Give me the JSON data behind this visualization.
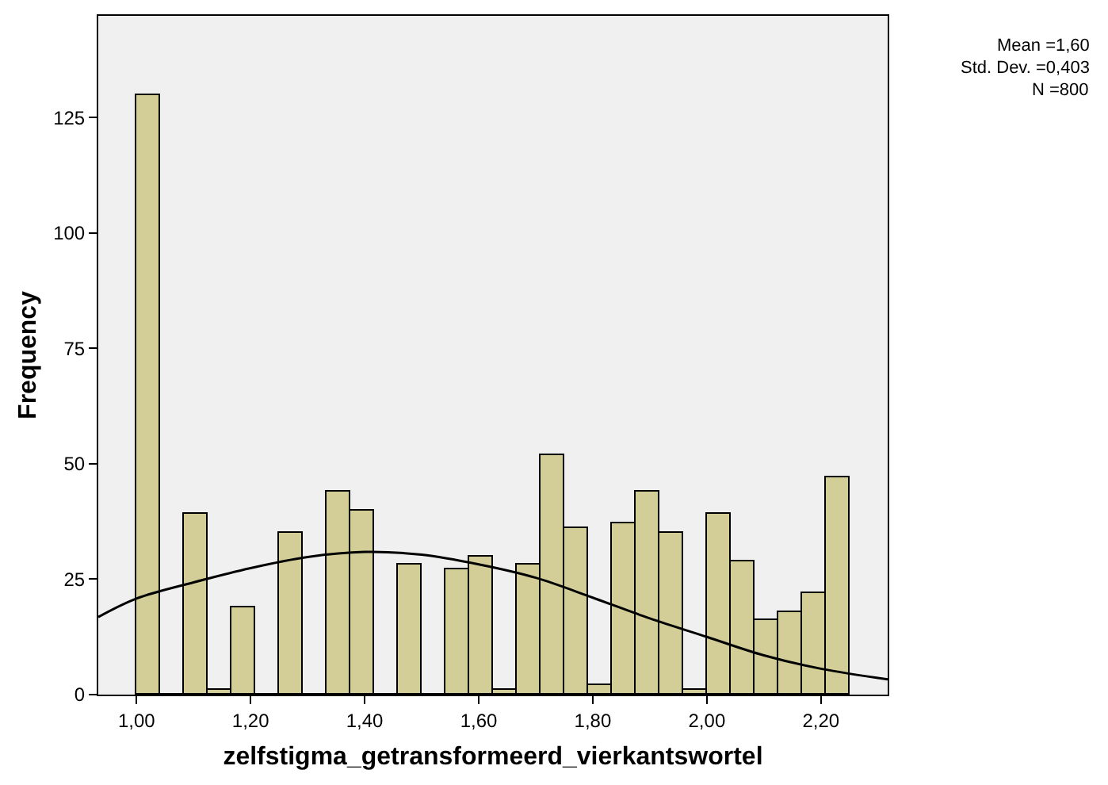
{
  "chart_data": {
    "type": "histogram",
    "xlabel": "zelfstigma_getransformeerd_vierkantswortel",
    "ylabel": "Frequency",
    "annotations": [
      "Mean =1,60",
      "Std. Dev. =0,403",
      "N =800"
    ],
    "series": [
      {
        "color": "#d3ce98",
        "bins": [
          1.0,
          1.0417,
          1.0833,
          1.125,
          1.1667,
          1.2083,
          1.25,
          1.2917,
          1.3333,
          1.375,
          1.4167,
          1.4583,
          1.5,
          1.5417,
          1.5833,
          1.625,
          1.6667,
          1.7083,
          1.75,
          1.7917,
          1.8333,
          1.875,
          1.9167,
          1.9583,
          2.0,
          2.0417,
          2.0833,
          2.125,
          2.1667,
          2.2083,
          2.25
        ],
        "values": [
          130,
          0,
          39,
          1,
          19,
          0,
          35,
          0,
          44,
          40,
          0,
          28,
          0,
          27,
          30,
          1,
          28,
          52,
          36,
          2,
          37,
          44,
          35,
          1,
          39,
          29,
          16,
          18,
          22,
          47
        ]
      },
      {
        "type": "line",
        "color": "#000000",
        "x": [
          0.933,
          1.0,
          1.1,
          1.2,
          1.3,
          1.4,
          1.5,
          1.6,
          1.7,
          1.8,
          1.9,
          2.0,
          2.1,
          2.2,
          2.317
        ],
        "values": [
          16.8,
          20.8,
          24.3,
          27.4,
          29.8,
          30.9,
          30.3,
          28.2,
          25.3,
          21,
          16.5,
          12.5,
          8.5,
          5.6,
          3.3
        ]
      }
    ],
    "xlim": [
      0.933,
      2.317
    ],
    "ylim": [
      0,
      147
    ],
    "xticks": [
      {
        "value": 1.0,
        "label": "1,00"
      },
      {
        "value": 1.2,
        "label": "1,20"
      },
      {
        "value": 1.4,
        "label": "1,40"
      },
      {
        "value": 1.6,
        "label": "1,60"
      },
      {
        "value": 1.8,
        "label": "1,80"
      },
      {
        "value": 2.0,
        "label": "2,00"
      },
      {
        "value": 2.2,
        "label": "2,20"
      }
    ],
    "yticks": [
      0,
      25,
      50,
      75,
      100,
      125
    ],
    "grid": false
  }
}
